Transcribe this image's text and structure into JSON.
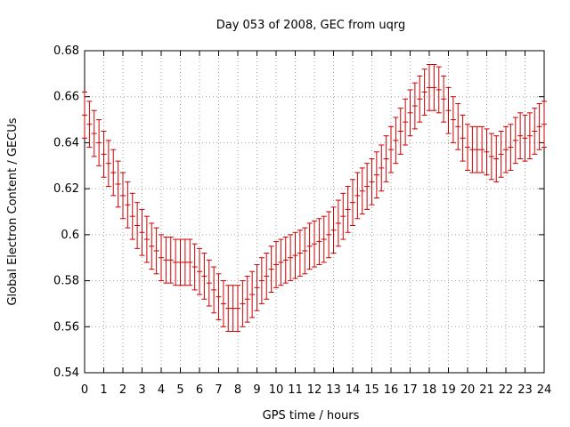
{
  "chart_data": {
    "type": "scatter",
    "title": "Day 053 of 2008, GEC from uqrg",
    "xlabel": "GPS time / hours",
    "ylabel": "Global Electron Content / GECUs",
    "xlim": [
      0,
      24
    ],
    "ylim": [
      0.54,
      0.68
    ],
    "grid": true,
    "xticks": [
      "0",
      "1",
      "2",
      "3",
      "4",
      "5",
      "6",
      "7",
      "8",
      "9",
      "10",
      "11",
      "12",
      "13",
      "14",
      "15",
      "16",
      "17",
      "18",
      "19",
      "20",
      "21",
      "22",
      "23",
      "24"
    ],
    "yticks": [
      "0.54",
      "0.56",
      "0.58",
      "0.6",
      "0.62",
      "0.64",
      "0.66",
      "0.68"
    ],
    "series": [
      {
        "name": "GEC",
        "color": "#cc0000",
        "x": [
          0.0,
          0.25,
          0.5,
          0.75,
          1.0,
          1.25,
          1.5,
          1.75,
          2.0,
          2.25,
          2.5,
          2.75,
          3.0,
          3.25,
          3.5,
          3.75,
          4.0,
          4.25,
          4.5,
          4.75,
          5.0,
          5.25,
          5.5,
          5.75,
          6.0,
          6.25,
          6.5,
          6.75,
          7.0,
          7.25,
          7.5,
          7.75,
          8.0,
          8.25,
          8.5,
          8.75,
          9.0,
          9.25,
          9.5,
          9.75,
          10.0,
          10.25,
          10.5,
          10.75,
          11.0,
          11.25,
          11.5,
          11.75,
          12.0,
          12.25,
          12.5,
          12.75,
          13.0,
          13.25,
          13.5,
          13.75,
          14.0,
          14.25,
          14.5,
          14.75,
          15.0,
          15.25,
          15.5,
          15.75,
          16.0,
          16.25,
          16.5,
          16.75,
          17.0,
          17.25,
          17.5,
          17.75,
          18.0,
          18.25,
          18.5,
          18.75,
          19.0,
          19.25,
          19.5,
          19.75,
          20.0,
          20.25,
          20.5,
          20.75,
          21.0,
          21.25,
          21.5,
          21.75,
          22.0,
          22.25,
          22.5,
          22.75,
          23.0,
          23.25,
          23.5,
          23.75,
          24.0
        ],
        "y": [
          0.652,
          0.648,
          0.644,
          0.64,
          0.635,
          0.631,
          0.627,
          0.622,
          0.617,
          0.613,
          0.608,
          0.604,
          0.601,
          0.598,
          0.595,
          0.593,
          0.59,
          0.589,
          0.589,
          0.588,
          0.588,
          0.588,
          0.588,
          0.586,
          0.584,
          0.582,
          0.579,
          0.576,
          0.573,
          0.57,
          0.568,
          0.568,
          0.568,
          0.57,
          0.572,
          0.574,
          0.577,
          0.58,
          0.582,
          0.585,
          0.587,
          0.588,
          0.589,
          0.59,
          0.591,
          0.592,
          0.593,
          0.595,
          0.596,
          0.597,
          0.598,
          0.6,
          0.602,
          0.605,
          0.608,
          0.611,
          0.614,
          0.617,
          0.619,
          0.621,
          0.623,
          0.626,
          0.629,
          0.633,
          0.637,
          0.641,
          0.645,
          0.649,
          0.653,
          0.656,
          0.659,
          0.662,
          0.664,
          0.664,
          0.663,
          0.659,
          0.654,
          0.65,
          0.647,
          0.642,
          0.638,
          0.637,
          0.637,
          0.637,
          0.636,
          0.634,
          0.633,
          0.635,
          0.637,
          0.638,
          0.641,
          0.643,
          0.642,
          0.643,
          0.645,
          0.647,
          0.648
        ],
        "error": 0.01
      }
    ]
  }
}
